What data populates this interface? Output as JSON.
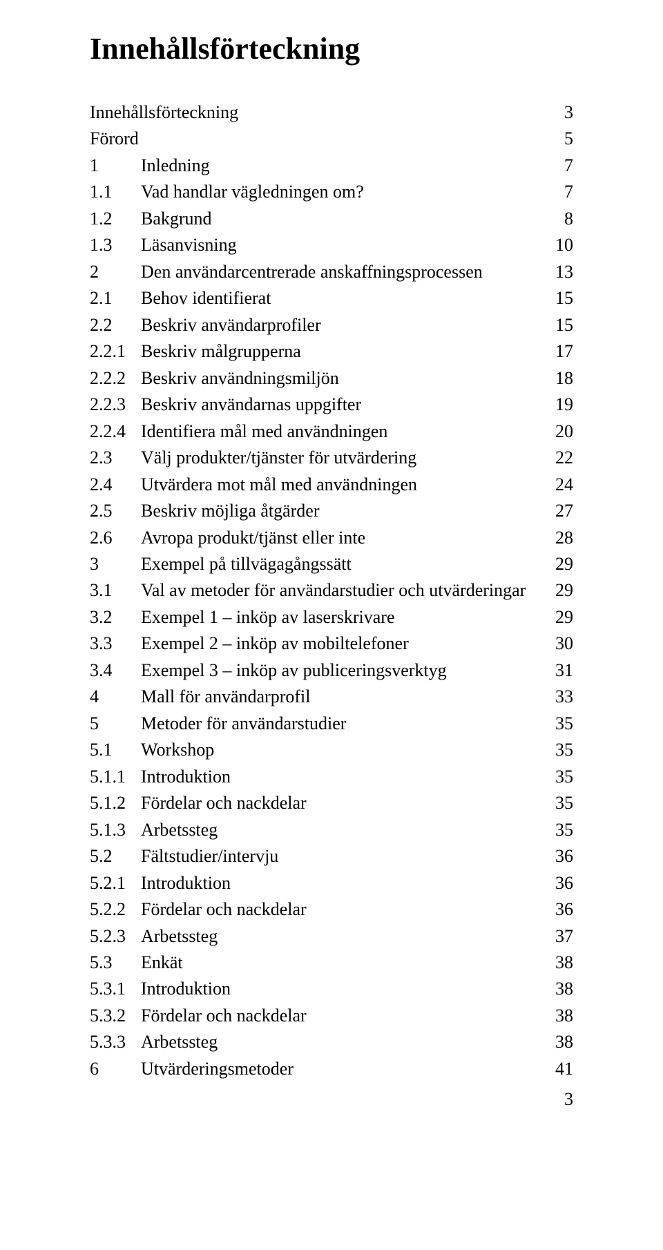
{
  "title": "Innehållsförteckning",
  "page_number": "3",
  "colors": {
    "background": "#ffffff",
    "text": "#000000"
  },
  "typography": {
    "title_fontsize": 44,
    "body_fontsize": 26,
    "font_family": "Times New Roman"
  },
  "toc": [
    {
      "num": "",
      "text": "Innehållsförteckning",
      "page": "3"
    },
    {
      "num": "",
      "text": "Förord",
      "page": "5"
    },
    {
      "num": "1",
      "text": "Inledning",
      "page": "7"
    },
    {
      "num": "1.1",
      "text": "Vad handlar vägledningen om?",
      "page": "7"
    },
    {
      "num": "1.2",
      "text": "Bakgrund",
      "page": "8"
    },
    {
      "num": "1.3",
      "text": "Läsanvisning",
      "page": "10"
    },
    {
      "num": "2",
      "text": "Den användarcentrerade anskaffningsprocessen",
      "page": "13"
    },
    {
      "num": "2.1",
      "text": "Behov identifierat",
      "page": "15"
    },
    {
      "num": "2.2",
      "text": "Beskriv användarprofiler",
      "page": "15"
    },
    {
      "num": "2.2.1",
      "text": "Beskriv målgrupperna",
      "page": "17"
    },
    {
      "num": "2.2.2",
      "text": "Beskriv användningsmiljön",
      "page": "18"
    },
    {
      "num": "2.2.3",
      "text": "Beskriv användarnas uppgifter",
      "page": "19"
    },
    {
      "num": "2.2.4",
      "text": "Identifiera mål med användningen",
      "page": "20"
    },
    {
      "num": "2.3",
      "text": "Välj produkter/tjänster för utvärdering",
      "page": "22"
    },
    {
      "num": "2.4",
      "text": "Utvärdera mot mål med användningen",
      "page": "24"
    },
    {
      "num": "2.5",
      "text": "Beskriv möjliga åtgärder",
      "page": "27"
    },
    {
      "num": "2.6",
      "text": "Avropa produkt/tjänst eller inte",
      "page": "28"
    },
    {
      "num": "3",
      "text": "Exempel på tillvägagångssätt",
      "page": "29"
    },
    {
      "num": "3.1",
      "text": "Val av metoder för användarstudier och utvärderingar",
      "page": "29"
    },
    {
      "num": "3.2",
      "text": "Exempel 1 – inköp av laserskrivare",
      "page": "29"
    },
    {
      "num": "3.3",
      "text": "Exempel 2 – inköp av mobiltelefoner",
      "page": "30"
    },
    {
      "num": "3.4",
      "text": "Exempel 3 – inköp av publiceringsverktyg",
      "page": "31"
    },
    {
      "num": "4",
      "text": "Mall för användarprofil",
      "page": "33"
    },
    {
      "num": "5",
      "text": "Metoder för användarstudier",
      "page": "35"
    },
    {
      "num": "5.1",
      "text": "Workshop",
      "page": "35"
    },
    {
      "num": "5.1.1",
      "text": "Introduktion",
      "page": "35"
    },
    {
      "num": "5.1.2",
      "text": "Fördelar och nackdelar",
      "page": "35"
    },
    {
      "num": "5.1.3",
      "text": "Arbetssteg",
      "page": "35"
    },
    {
      "num": "5.2",
      "text": "Fältstudier/intervju",
      "page": "36"
    },
    {
      "num": "5.2.1",
      "text": "Introduktion",
      "page": "36"
    },
    {
      "num": "5.2.2",
      "text": "Fördelar och nackdelar",
      "page": "36"
    },
    {
      "num": "5.2.3",
      "text": "Arbetssteg",
      "page": "37"
    },
    {
      "num": "5.3",
      "text": "Enkät",
      "page": "38"
    },
    {
      "num": "5.3.1",
      "text": "Introduktion",
      "page": "38"
    },
    {
      "num": "5.3.2",
      "text": "Fördelar och nackdelar",
      "page": "38"
    },
    {
      "num": "5.3.3",
      "text": "Arbetssteg",
      "page": "38"
    },
    {
      "num": "6",
      "text": "Utvärderingsmetoder",
      "page": "41"
    }
  ]
}
